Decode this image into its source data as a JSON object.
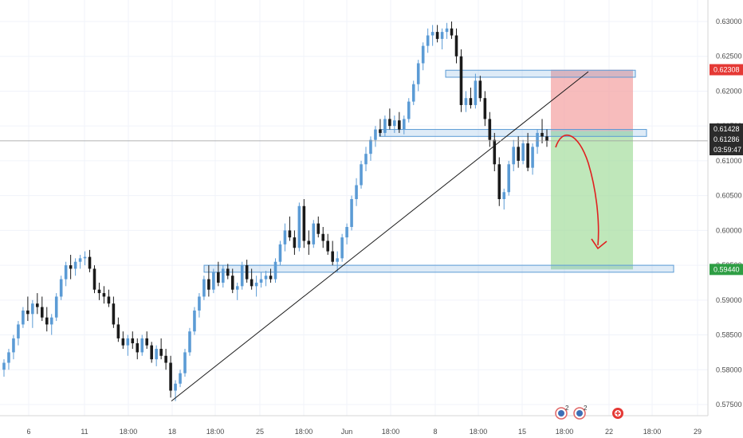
{
  "chart_data": {
    "type": "candlestick",
    "instrument_colors": {
      "up": "#5b9bd5",
      "down": "#1a1a1a",
      "support_zone": "#5b9bd5",
      "stop_zone": "#f4a6a6",
      "target_zone": "#a9dfa3",
      "arrow": "#e02020"
    },
    "y_ticks": [
      "0.63000",
      "0.62500",
      "0.62000",
      "0.61500",
      "0.61000",
      "0.60500",
      "0.60000",
      "0.59500",
      "0.59000",
      "0.58500",
      "0.58000",
      "0.57500"
    ],
    "ylim": [
      0.572,
      0.632
    ],
    "x_ticks": [
      "6",
      "11",
      "18:00",
      "18",
      "18:00",
      "25",
      "18:00",
      "Jun",
      "18:00",
      "8",
      "18:00",
      "15",
      "18:00",
      "22",
      "18:00",
      "29"
    ],
    "price_badges": {
      "stop": {
        "label": "0.62308",
        "value": 0.62308,
        "color": "#e53935"
      },
      "entry": {
        "label": "0.61428",
        "value": 0.61428,
        "color": "#2b2b2b"
      },
      "current": {
        "label": "0.61286",
        "value": 0.61286,
        "color": "#2b2b2b"
      },
      "countdown": {
        "label": "03:59:47",
        "color": "#2b2b2b"
      },
      "target": {
        "label": "0.59440",
        "value": 0.5944,
        "color": "#2e9e44"
      }
    },
    "zones": [
      {
        "name": "resistance",
        "low": 0.622,
        "high": 0.623
      },
      {
        "name": "mid",
        "low": 0.6135,
        "high": 0.6145
      },
      {
        "name": "support",
        "low": 0.594,
        "high": 0.595
      }
    ],
    "position": {
      "entry": 0.61428,
      "stop": 0.62308,
      "target": 0.5944
    },
    "trendline": {
      "from_price": 0.5755,
      "to_price": 0.6228
    },
    "candles": [
      [
        0.58,
        0.5815,
        0.579,
        0.581
      ],
      [
        0.581,
        0.583,
        0.58,
        0.5825
      ],
      [
        0.5825,
        0.585,
        0.5815,
        0.5845
      ],
      [
        0.5845,
        0.587,
        0.5835,
        0.5865
      ],
      [
        0.5865,
        0.589,
        0.586,
        0.5885
      ],
      [
        0.5885,
        0.5905,
        0.587,
        0.588
      ],
      [
        0.588,
        0.59,
        0.586,
        0.5895
      ],
      [
        0.5895,
        0.591,
        0.588,
        0.589
      ],
      [
        0.589,
        0.5905,
        0.587,
        0.5875
      ],
      [
        0.5875,
        0.589,
        0.5855,
        0.5865
      ],
      [
        0.5865,
        0.588,
        0.585,
        0.5875
      ],
      [
        0.5875,
        0.591,
        0.587,
        0.5905
      ],
      [
        0.5905,
        0.5935,
        0.59,
        0.593
      ],
      [
        0.593,
        0.5955,
        0.592,
        0.595
      ],
      [
        0.595,
        0.5965,
        0.593,
        0.5945
      ],
      [
        0.5945,
        0.596,
        0.5935,
        0.5955
      ],
      [
        0.5955,
        0.5965,
        0.5945,
        0.596
      ],
      [
        0.596,
        0.597,
        0.595,
        0.5962
      ],
      [
        0.5962,
        0.5972,
        0.594,
        0.5945
      ],
      [
        0.5945,
        0.595,
        0.591,
        0.5915
      ],
      [
        0.5915,
        0.5925,
        0.59,
        0.591
      ],
      [
        0.591,
        0.592,
        0.5895,
        0.5905
      ],
      [
        0.5905,
        0.5915,
        0.589,
        0.5895
      ],
      [
        0.5895,
        0.5905,
        0.586,
        0.5865
      ],
      [
        0.5865,
        0.5875,
        0.584,
        0.5845
      ],
      [
        0.5845,
        0.5855,
        0.583,
        0.5835
      ],
      [
        0.5835,
        0.585,
        0.582,
        0.5845
      ],
      [
        0.5845,
        0.5855,
        0.583,
        0.5838
      ],
      [
        0.5838,
        0.5845,
        0.5815,
        0.5825
      ],
      [
        0.5825,
        0.585,
        0.582,
        0.5845
      ],
      [
        0.5845,
        0.5855,
        0.583,
        0.5835
      ],
      [
        0.5835,
        0.584,
        0.581,
        0.5815
      ],
      [
        0.5815,
        0.5835,
        0.5805,
        0.583
      ],
      [
        0.583,
        0.5845,
        0.5815,
        0.582
      ],
      [
        0.582,
        0.583,
        0.58,
        0.581
      ],
      [
        0.581,
        0.582,
        0.576,
        0.577
      ],
      [
        0.577,
        0.5785,
        0.5755,
        0.578
      ],
      [
        0.578,
        0.58,
        0.5775,
        0.5795
      ],
      [
        0.5795,
        0.583,
        0.579,
        0.5825
      ],
      [
        0.5825,
        0.586,
        0.582,
        0.5855
      ],
      [
        0.5855,
        0.589,
        0.585,
        0.5885
      ],
      [
        0.5885,
        0.591,
        0.5875,
        0.5905
      ],
      [
        0.5905,
        0.5935,
        0.59,
        0.593
      ],
      [
        0.593,
        0.595,
        0.5905,
        0.5915
      ],
      [
        0.5915,
        0.5945,
        0.591,
        0.594
      ],
      [
        0.594,
        0.5955,
        0.592,
        0.5925
      ],
      [
        0.5925,
        0.595,
        0.5918,
        0.5945
      ],
      [
        0.5945,
        0.5952,
        0.593,
        0.5935
      ],
      [
        0.5935,
        0.5945,
        0.591,
        0.5915
      ],
      [
        0.5915,
        0.5925,
        0.59,
        0.592
      ],
      [
        0.592,
        0.5955,
        0.5915,
        0.595
      ],
      [
        0.595,
        0.5958,
        0.5925,
        0.593
      ],
      [
        0.593,
        0.5945,
        0.5915,
        0.592
      ],
      [
        0.592,
        0.5935,
        0.5905,
        0.5925
      ],
      [
        0.5925,
        0.594,
        0.5918,
        0.593
      ],
      [
        0.593,
        0.5942,
        0.592,
        0.5935
      ],
      [
        0.5935,
        0.5945,
        0.5925,
        0.593
      ],
      [
        0.593,
        0.596,
        0.5925,
        0.5955
      ],
      [
        0.5955,
        0.5985,
        0.595,
        0.598
      ],
      [
        0.598,
        0.601,
        0.597,
        0.6
      ],
      [
        0.6,
        0.602,
        0.5985,
        0.599
      ],
      [
        0.599,
        0.6,
        0.5965,
        0.5975
      ],
      [
        0.5975,
        0.604,
        0.597,
        0.6035
      ],
      [
        0.6035,
        0.6045,
        0.5975,
        0.5985
      ],
      [
        0.5985,
        0.6,
        0.5965,
        0.598
      ],
      [
        0.598,
        0.6015,
        0.5975,
        0.601
      ],
      [
        0.601,
        0.602,
        0.599,
        0.5995
      ],
      [
        0.5995,
        0.6005,
        0.5975,
        0.5985
      ],
      [
        0.5985,
        0.5995,
        0.5965,
        0.597
      ],
      [
        0.597,
        0.5985,
        0.595,
        0.5955
      ],
      [
        0.5955,
        0.597,
        0.594,
        0.596
      ],
      [
        0.596,
        0.5995,
        0.5955,
        0.599
      ],
      [
        0.599,
        0.601,
        0.598,
        0.6005
      ],
      [
        0.6005,
        0.605,
        0.6,
        0.6045
      ],
      [
        0.6045,
        0.6075,
        0.6035,
        0.6065
      ],
      [
        0.6065,
        0.61,
        0.606,
        0.6095
      ],
      [
        0.6095,
        0.612,
        0.6085,
        0.611
      ],
      [
        0.611,
        0.6135,
        0.61,
        0.613
      ],
      [
        0.613,
        0.615,
        0.612,
        0.6145
      ],
      [
        0.6145,
        0.616,
        0.6135,
        0.614
      ],
      [
        0.614,
        0.6165,
        0.6135,
        0.616
      ],
      [
        0.616,
        0.6175,
        0.6145,
        0.615
      ],
      [
        0.615,
        0.6165,
        0.614,
        0.6158
      ],
      [
        0.6158,
        0.617,
        0.614,
        0.6145
      ],
      [
        0.6145,
        0.6165,
        0.6138,
        0.616
      ],
      [
        0.616,
        0.619,
        0.6155,
        0.6185
      ],
      [
        0.6185,
        0.6215,
        0.618,
        0.621
      ],
      [
        0.621,
        0.6245,
        0.62,
        0.624
      ],
      [
        0.624,
        0.627,
        0.623,
        0.6265
      ],
      [
        0.6265,
        0.629,
        0.6255,
        0.628
      ],
      [
        0.628,
        0.6295,
        0.6265,
        0.6285
      ],
      [
        0.6285,
        0.6295,
        0.627,
        0.6275
      ],
      [
        0.6275,
        0.629,
        0.626,
        0.6285
      ],
      [
        0.6285,
        0.6298,
        0.6275,
        0.629
      ],
      [
        0.629,
        0.63,
        0.6275,
        0.628
      ],
      [
        0.628,
        0.629,
        0.624,
        0.625
      ],
      [
        0.625,
        0.626,
        0.617,
        0.618
      ],
      [
        0.618,
        0.62,
        0.617,
        0.619
      ],
      [
        0.619,
        0.6205,
        0.6175,
        0.618
      ],
      [
        0.618,
        0.6225,
        0.6175,
        0.6215
      ],
      [
        0.6215,
        0.6222,
        0.6185,
        0.619
      ],
      [
        0.619,
        0.62,
        0.615,
        0.616
      ],
      [
        0.616,
        0.617,
        0.612,
        0.613
      ],
      [
        0.613,
        0.614,
        0.6085,
        0.6095
      ],
      [
        0.6095,
        0.6105,
        0.6035,
        0.6045
      ],
      [
        0.6045,
        0.606,
        0.603,
        0.6055
      ],
      [
        0.6055,
        0.61,
        0.605,
        0.6095
      ],
      [
        0.6095,
        0.613,
        0.6085,
        0.612
      ],
      [
        0.612,
        0.6135,
        0.609,
        0.61
      ],
      [
        0.61,
        0.613,
        0.6095,
        0.6125
      ],
      [
        0.6125,
        0.614,
        0.6085,
        0.609
      ],
      [
        0.609,
        0.6125,
        0.608,
        0.612
      ],
      [
        0.612,
        0.6145,
        0.611,
        0.614
      ],
      [
        0.614,
        0.616,
        0.6125,
        0.6135
      ],
      [
        0.6135,
        0.6145,
        0.612,
        0.61286
      ]
    ],
    "event_icons": [
      "2",
      "2"
    ]
  }
}
